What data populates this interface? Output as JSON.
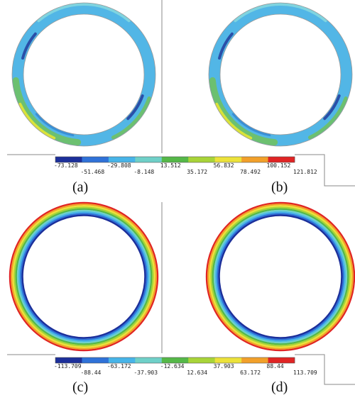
{
  "panels": [
    "(a)",
    "(b)",
    "(c)",
    "(d)"
  ],
  "legend_top": {
    "labels": [
      "-73.128",
      "-51.468",
      "-29.808",
      "-8.148",
      "13.512",
      "35.172",
      "56.832",
      "78.492",
      "100.152",
      "121.812"
    ]
  },
  "legend_bottom": {
    "labels": [
      "-113.709",
      "-88.44",
      "-63.172",
      "-37.903",
      "-12.634",
      "12.634",
      "37.903",
      "63.172",
      "88.44",
      "113.709"
    ]
  }
}
